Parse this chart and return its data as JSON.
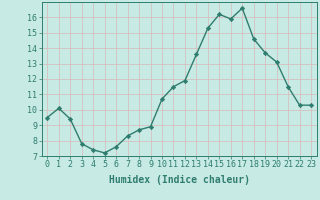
{
  "x": [
    0,
    1,
    2,
    3,
    4,
    5,
    6,
    7,
    8,
    9,
    10,
    11,
    12,
    13,
    14,
    15,
    16,
    17,
    18,
    19,
    20,
    21,
    22,
    23
  ],
  "y": [
    9.5,
    10.1,
    9.4,
    7.8,
    7.4,
    7.2,
    7.6,
    8.3,
    8.7,
    8.9,
    10.7,
    11.5,
    11.9,
    13.6,
    15.3,
    16.2,
    15.9,
    16.6,
    14.6,
    13.7,
    13.1,
    11.5,
    10.3,
    10.3
  ],
  "line_color": "#2E7D6E",
  "bg_color": "#C8EAE4",
  "grid_color": "#d8b8b8",
  "xlabel": "Humidex (Indice chaleur)",
  "ylim": [
    7,
    17
  ],
  "xlim": [
    -0.5,
    23.5
  ],
  "yticks": [
    7,
    8,
    9,
    10,
    11,
    12,
    13,
    14,
    15,
    16
  ],
  "xticks": [
    0,
    1,
    2,
    3,
    4,
    5,
    6,
    7,
    8,
    9,
    10,
    11,
    12,
    13,
    14,
    15,
    16,
    17,
    18,
    19,
    20,
    21,
    22,
    23
  ],
  "marker": "D",
  "markersize": 2.2,
  "linewidth": 1.0,
  "xlabel_fontsize": 7,
  "tick_fontsize": 6
}
